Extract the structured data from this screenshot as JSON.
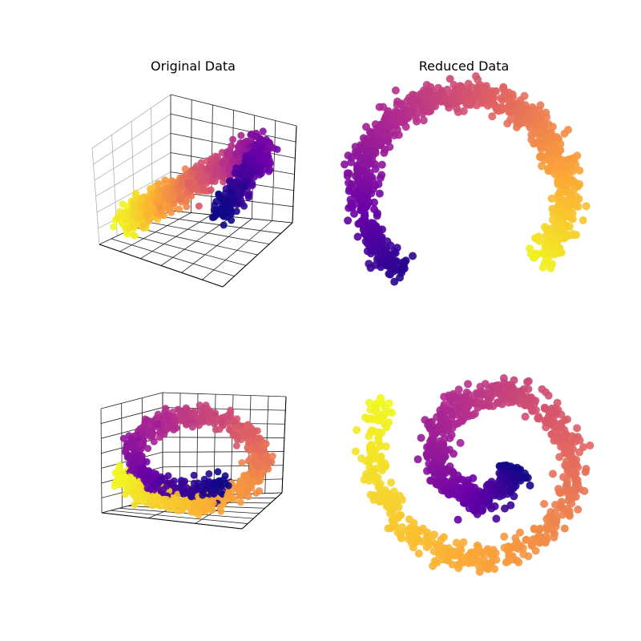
{
  "figure": {
    "col_titles": [
      "Original Data",
      "Reduced Data"
    ],
    "colormap": "plasma",
    "colormap_stops": [
      "#0d0887",
      "#6a00a8",
      "#b12a90",
      "#e16462",
      "#fca636",
      "#f0f921"
    ]
  },
  "chart_data": [
    {
      "type": "scatter",
      "subtype": "3d",
      "title": "Original Data",
      "dataset": "swiss-roll-arc",
      "grid": true,
      "tick_labels": false,
      "color_by": "position along manifold",
      "points": 1000
    },
    {
      "type": "scatter",
      "title": "Reduced Data",
      "shape": "open ring (arc from top-left, down through bottom, up right side)",
      "axes_visible": false,
      "color_by": "position along manifold",
      "points": 1000
    },
    {
      "type": "scatter",
      "subtype": "3d",
      "title": "",
      "dataset": "swiss-roll",
      "grid": true,
      "tick_labels": false,
      "color_by": "position along manifold",
      "points": 1000
    },
    {
      "type": "scatter",
      "title": "",
      "shape": "spiral",
      "axes_visible": false,
      "color_by": "position along manifold",
      "points": 1000
    }
  ]
}
